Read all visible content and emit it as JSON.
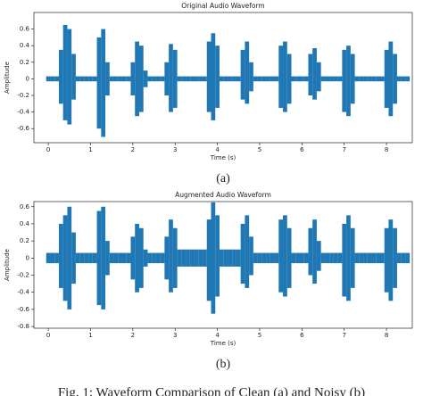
{
  "chart_data": [
    {
      "type": "waveform",
      "title": "Original Audio Waveform",
      "x_label": "Time (s)",
      "y_label": "Amplitude",
      "label": "(a)",
      "color": "#1f77b4",
      "xlim": [
        -0.34,
        8.61
      ],
      "xticks": [
        0,
        1,
        2,
        3,
        4,
        5,
        6,
        7,
        8
      ],
      "ylim": [
        -0.77,
        0.8
      ],
      "yticks": [
        -0.6,
        -0.4,
        -0.2,
        0.0,
        0.2,
        0.4,
        0.6
      ],
      "x": [
        0,
        0.1,
        0.2,
        0.3,
        0.4,
        0.5,
        0.6,
        0.7,
        0.8,
        0.9,
        1,
        1.1,
        1.2,
        1.3,
        1.4,
        1.5,
        1.6,
        1.7,
        1.8,
        1.9,
        2,
        2.1,
        2.2,
        2.3,
        2.4,
        2.5,
        2.6,
        2.7,
        2.8,
        2.9,
        3,
        3.1,
        3.2,
        3.3,
        3.4,
        3.5,
        3.6,
        3.7,
        3.8,
        3.9,
        4,
        4.1,
        4.2,
        4.3,
        4.4,
        4.5,
        4.6,
        4.7,
        4.8,
        4.9,
        5,
        5.1,
        5.2,
        5.3,
        5.4,
        5.5,
        5.6,
        5.7,
        5.8,
        5.9,
        6,
        6.1,
        6.2,
        6.3,
        6.4,
        6.5,
        6.6,
        6.7,
        6.8,
        6.9,
        7,
        7.1,
        7.2,
        7.3,
        7.4,
        7.5,
        7.6,
        7.7,
        7.8,
        7.9,
        8,
        8.1,
        8.2,
        8.3,
        8.4,
        8.5
      ],
      "upper": [
        0.03,
        0.03,
        0.03,
        0.35,
        0.65,
        0.6,
        0.3,
        0.03,
        0.03,
        0.03,
        0.03,
        0.03,
        0.5,
        0.6,
        0.2,
        0.03,
        0.03,
        0.03,
        0.03,
        0.03,
        0.2,
        0.45,
        0.4,
        0.1,
        0.03,
        0.03,
        0.03,
        0.03,
        0.2,
        0.42,
        0.35,
        0.03,
        0.03,
        0.03,
        0.03,
        0.03,
        0.03,
        0.03,
        0.45,
        0.55,
        0.4,
        0.03,
        0.03,
        0.03,
        0.03,
        0.03,
        0.35,
        0.45,
        0.2,
        0.03,
        0.03,
        0.03,
        0.03,
        0.03,
        0.03,
        0.4,
        0.45,
        0.3,
        0.03,
        0.03,
        0.03,
        0.03,
        0.3,
        0.37,
        0.2,
        0.03,
        0.03,
        0.03,
        0.03,
        0.03,
        0.35,
        0.4,
        0.3,
        0.03,
        0.03,
        0.03,
        0.03,
        0.03,
        0.03,
        0.03,
        0.35,
        0.45,
        0.3,
        0.03,
        0.03,
        0.03
      ],
      "lower": [
        -0.03,
        -0.03,
        -0.03,
        -0.3,
        -0.5,
        -0.55,
        -0.25,
        -0.03,
        -0.03,
        -0.03,
        -0.03,
        -0.03,
        -0.6,
        -0.7,
        -0.2,
        -0.03,
        -0.03,
        -0.03,
        -0.03,
        -0.03,
        -0.2,
        -0.45,
        -0.4,
        -0.1,
        -0.03,
        -0.03,
        -0.03,
        -0.03,
        -0.2,
        -0.4,
        -0.35,
        -0.03,
        -0.03,
        -0.03,
        -0.03,
        -0.03,
        -0.03,
        -0.03,
        -0.4,
        -0.5,
        -0.35,
        -0.03,
        -0.03,
        -0.03,
        -0.03,
        -0.03,
        -0.25,
        -0.3,
        -0.15,
        -0.03,
        -0.03,
        -0.03,
        -0.03,
        -0.03,
        -0.03,
        -0.35,
        -0.4,
        -0.3,
        -0.03,
        -0.03,
        -0.03,
        -0.03,
        -0.2,
        -0.25,
        -0.15,
        -0.03,
        -0.03,
        -0.03,
        -0.03,
        -0.03,
        -0.4,
        -0.45,
        -0.3,
        -0.03,
        -0.03,
        -0.03,
        -0.03,
        -0.03,
        -0.03,
        -0.03,
        -0.35,
        -0.45,
        -0.3,
        -0.03,
        -0.03,
        -0.03
      ]
    },
    {
      "type": "waveform",
      "title": "Augmented Audio Waveform",
      "x_label": "Time (s)",
      "y_label": "Amplitude",
      "label": "(b)",
      "color": "#1f77b4",
      "xlim": [
        -0.34,
        8.61
      ],
      "xticks": [
        0,
        1,
        2,
        3,
        4,
        5,
        6,
        7,
        8
      ],
      "ylim": [
        -0.82,
        0.66
      ],
      "yticks": [
        -0.8,
        -0.6,
        -0.4,
        -0.2,
        0.0,
        0.2,
        0.4,
        0.6
      ],
      "x": [
        0,
        0.1,
        0.2,
        0.3,
        0.4,
        0.5,
        0.6,
        0.7,
        0.8,
        0.9,
        1,
        1.1,
        1.2,
        1.3,
        1.4,
        1.5,
        1.6,
        1.7,
        1.8,
        1.9,
        2,
        2.1,
        2.2,
        2.3,
        2.4,
        2.5,
        2.6,
        2.7,
        2.8,
        2.9,
        3,
        3.1,
        3.2,
        3.3,
        3.4,
        3.5,
        3.6,
        3.7,
        3.8,
        3.9,
        4,
        4.1,
        4.2,
        4.3,
        4.4,
        4.5,
        4.6,
        4.7,
        4.8,
        4.9,
        5,
        5.1,
        5.2,
        5.3,
        5.4,
        5.5,
        5.6,
        5.7,
        5.8,
        5.9,
        6,
        6.1,
        6.2,
        6.3,
        6.4,
        6.5,
        6.6,
        6.7,
        6.8,
        6.9,
        7,
        7.1,
        7.2,
        7.3,
        7.4,
        7.5,
        7.6,
        7.7,
        7.8,
        7.9,
        8,
        8.1,
        8.2,
        8.3,
        8.4,
        8.5
      ],
      "upper": [
        0.06,
        0.06,
        0.06,
        0.4,
        0.5,
        0.6,
        0.3,
        0.06,
        0.06,
        0.06,
        0.06,
        0.06,
        0.55,
        0.6,
        0.2,
        0.06,
        0.06,
        0.06,
        0.06,
        0.06,
        0.25,
        0.4,
        0.35,
        0.1,
        0.06,
        0.06,
        0.06,
        0.06,
        0.25,
        0.45,
        0.35,
        0.1,
        0.1,
        0.1,
        0.1,
        0.1,
        0.1,
        0.1,
        0.45,
        0.65,
        0.5,
        0.1,
        0.1,
        0.1,
        0.1,
        0.1,
        0.4,
        0.5,
        0.25,
        0.06,
        0.06,
        0.06,
        0.06,
        0.06,
        0.06,
        0.45,
        0.5,
        0.35,
        0.06,
        0.06,
        0.06,
        0.06,
        0.35,
        0.45,
        0.2,
        0.06,
        0.06,
        0.06,
        0.06,
        0.06,
        0.4,
        0.5,
        0.35,
        0.06,
        0.06,
        0.06,
        0.06,
        0.06,
        0.06,
        0.06,
        0.35,
        0.45,
        0.35,
        0.06,
        0.06,
        0.06
      ],
      "lower": [
        -0.06,
        -0.06,
        -0.06,
        -0.35,
        -0.5,
        -0.6,
        -0.3,
        -0.06,
        -0.06,
        -0.06,
        -0.06,
        -0.06,
        -0.55,
        -0.6,
        -0.2,
        -0.06,
        -0.06,
        -0.06,
        -0.06,
        -0.06,
        -0.25,
        -0.4,
        -0.35,
        -0.1,
        -0.06,
        -0.06,
        -0.06,
        -0.06,
        -0.25,
        -0.4,
        -0.35,
        -0.1,
        -0.1,
        -0.1,
        -0.1,
        -0.1,
        -0.1,
        -0.1,
        -0.5,
        -0.65,
        -0.45,
        -0.1,
        -0.1,
        -0.1,
        -0.1,
        -0.1,
        -0.3,
        -0.35,
        -0.2,
        -0.06,
        -0.06,
        -0.06,
        -0.06,
        -0.06,
        -0.06,
        -0.4,
        -0.45,
        -0.35,
        -0.06,
        -0.06,
        -0.06,
        -0.06,
        -0.2,
        -0.3,
        -0.15,
        -0.06,
        -0.06,
        -0.06,
        -0.06,
        -0.06,
        -0.45,
        -0.5,
        -0.35,
        -0.06,
        -0.06,
        -0.06,
        -0.06,
        -0.06,
        -0.06,
        -0.06,
        -0.4,
        -0.5,
        -0.35,
        -0.06,
        -0.06,
        -0.06
      ]
    }
  ],
  "caption": "Fig. 1: Waveform Comparison of Clean (a) and Noisy (b)"
}
